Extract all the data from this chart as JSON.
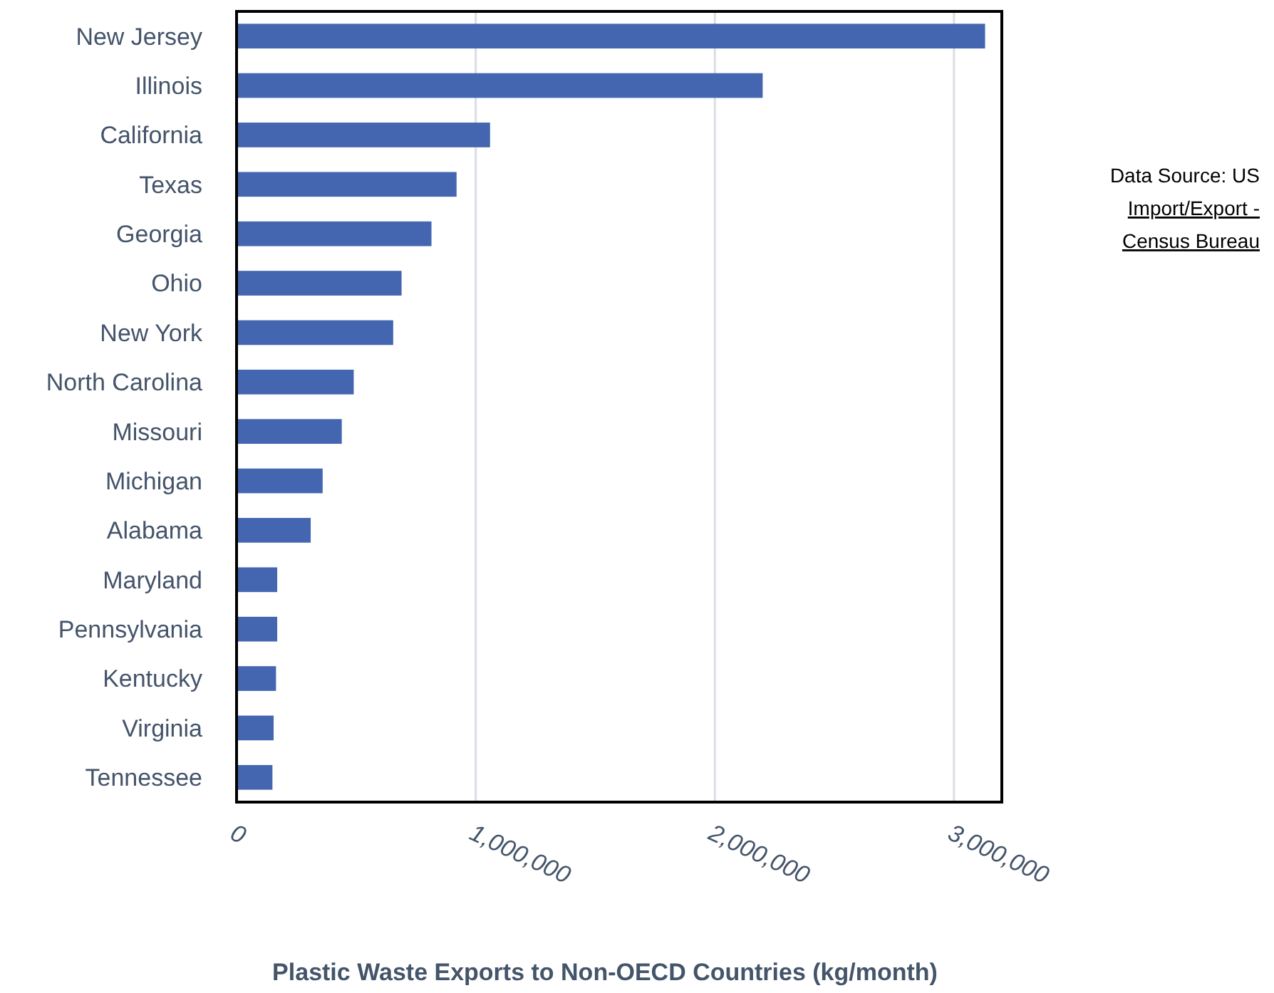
{
  "chart_data": {
    "type": "bar",
    "orientation": "horizontal",
    "xlabel": "Plastic Waste Exports to Non-OECD Countries (kg/month)",
    "categories": [
      "New Jersey",
      "Illinois",
      "California",
      "Texas",
      "Georgia",
      "Ohio",
      "New York",
      "North Carolina",
      "Missouri",
      "Michigan",
      "Alabama",
      "Maryland",
      "Pennsylvania",
      "Kentucky",
      "Virginia",
      "Tennessee"
    ],
    "values": [
      3130000,
      2200000,
      1060000,
      920000,
      815000,
      690000,
      655000,
      490000,
      440000,
      360000,
      310000,
      170000,
      170000,
      165000,
      155000,
      150000
    ],
    "color": "#4466b0",
    "xlim": [
      0,
      3200000
    ],
    "xticks": [
      {
        "value": 0,
        "label": "0"
      },
      {
        "value": 1000000,
        "label": "1,000,000"
      },
      {
        "value": 2000000,
        "label": "2,000,000"
      },
      {
        "value": 3000000,
        "label": "3,000,000"
      }
    ],
    "grid": "x",
    "annotations": [
      "Data Source: US Import/Export - Census Bureau"
    ]
  }
}
